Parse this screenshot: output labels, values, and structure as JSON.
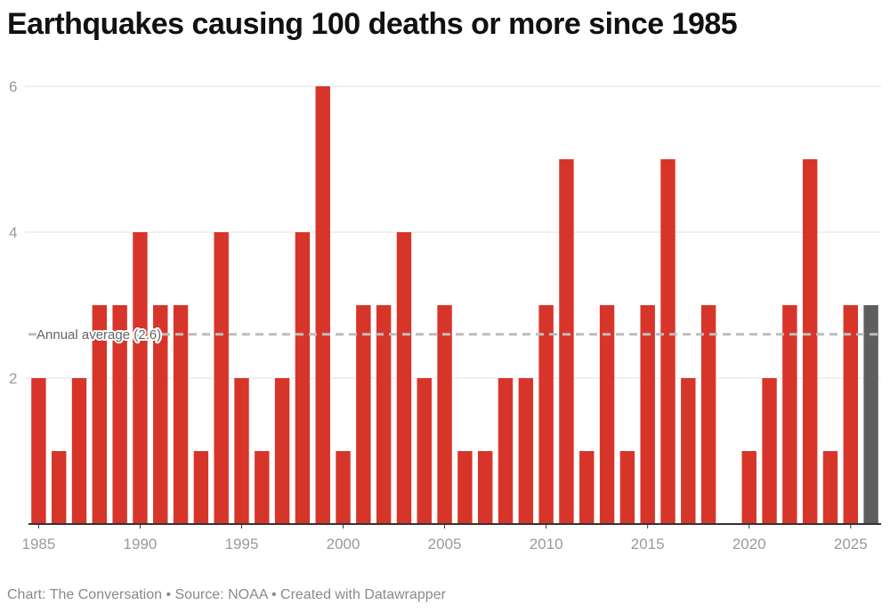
{
  "chart_data": {
    "type": "bar",
    "title": "Earthquakes causing 100 deaths or more since 1985",
    "xlabel": "",
    "ylabel": "",
    "categories": [
      1985,
      1986,
      1987,
      1988,
      1989,
      1990,
      1991,
      1992,
      1993,
      1994,
      1995,
      1996,
      1997,
      1998,
      1999,
      2000,
      2001,
      2002,
      2003,
      2004,
      2005,
      2006,
      2007,
      2008,
      2009,
      2010,
      2011,
      2012,
      2013,
      2014,
      2015,
      2016,
      2017,
      2018,
      2019,
      2020,
      2021,
      2022,
      2023,
      2024,
      2025,
      2026
    ],
    "values": [
      2,
      1,
      2,
      3,
      3,
      4,
      3,
      3,
      1,
      4,
      2,
      1,
      2,
      4,
      6,
      1,
      3,
      3,
      4,
      2,
      3,
      1,
      1,
      2,
      2,
      3,
      5,
      1,
      3,
      1,
      3,
      5,
      2,
      3,
      0,
      1,
      2,
      3,
      5,
      1,
      3,
      3
    ],
    "highlight_category": 2026,
    "xticks": [
      "1985",
      "1990",
      "1995",
      "2000",
      "2005",
      "2010",
      "2015",
      "2020",
      "2025"
    ],
    "yticks": [
      "2",
      "4",
      "6"
    ],
    "ylim": [
      0,
      6
    ],
    "grid": true,
    "average": {
      "value": 2.6,
      "label": "Annual average (2.6)"
    },
    "colors": {
      "bar": "#d8352a",
      "highlight": "#5e5e60",
      "grid": "#e2e2e2",
      "average_line": "#bdbdbd",
      "axis": "#333333"
    }
  },
  "footer": "Chart: The Conversation • Source: NOAA • Created with Datawrapper"
}
